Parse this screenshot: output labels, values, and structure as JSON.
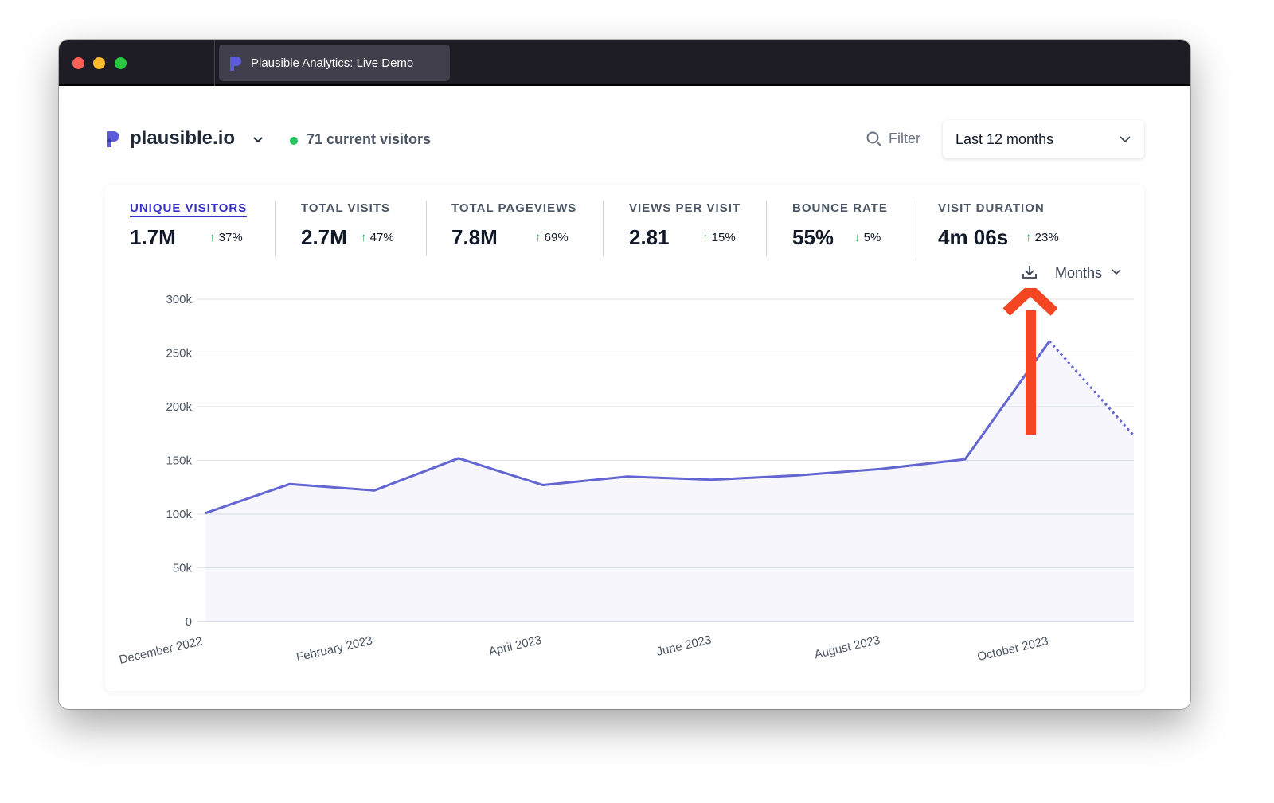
{
  "window": {
    "tab_title": "Plausible Analytics: Live Demo",
    "traffic_lights": [
      "#fe5f57",
      "#febc2e",
      "#28c840"
    ]
  },
  "header": {
    "site": "plausible.io",
    "current_visitors": "71 current visitors",
    "filter_label": "Filter",
    "date_range": "Last 12 months"
  },
  "metrics": [
    {
      "label": "UNIQUE VISITORS",
      "value": "1.7M",
      "change": "37%",
      "direction": "up",
      "active": true
    },
    {
      "label": "TOTAL VISITS",
      "value": "2.7M",
      "change": "47%",
      "direction": "up"
    },
    {
      "label": "TOTAL PAGEVIEWS",
      "value": "7.8M",
      "change": "69%",
      "direction": "up"
    },
    {
      "label": "VIEWS PER VISIT",
      "value": "2.81",
      "change": "15%",
      "direction": "up"
    },
    {
      "label": "BOUNCE RATE",
      "value": "55%",
      "change": "5%",
      "direction": "down"
    },
    {
      "label": "VISIT DURATION",
      "value": "4m 06s",
      "change": "23%",
      "direction": "up"
    }
  ],
  "chart_controls": {
    "interval": "Months",
    "download_icon": "download-icon"
  },
  "annotation": {
    "arrow_color": "#f44623",
    "points_to": "download-icon"
  },
  "colors": {
    "accent": "#3730c8",
    "line": "#6366d1",
    "positive": "#16a34a"
  },
  "chart_data": {
    "type": "line",
    "months": [
      "December 2022",
      "January 2023",
      "February 2023",
      "March 2023",
      "April 2023",
      "May 2023",
      "June 2023",
      "July 2023",
      "August 2023",
      "September 2023",
      "October 2023",
      "November 2023"
    ],
    "values": [
      101000,
      128000,
      122000,
      152000,
      127000,
      135000,
      132000,
      136000,
      142000,
      151000,
      261000,
      173000
    ],
    "partial_last_period": true,
    "x_tick_labels": [
      "December 2022",
      "February 2023",
      "April 2023",
      "June 2023",
      "August 2023",
      "October 2023"
    ],
    "y_tick_labels": [
      "0",
      "50k",
      "100k",
      "150k",
      "200k",
      "250k",
      "300k"
    ],
    "ylim": [
      0,
      300000
    ],
    "grid": true
  }
}
